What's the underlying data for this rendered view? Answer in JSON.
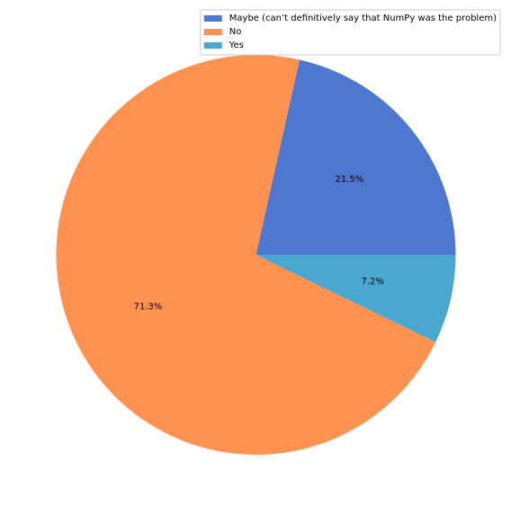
{
  "chart_data": {
    "type": "pie",
    "categories": [
      "Maybe (can’t definitively say that NumPy was the problem)",
      "No",
      "Yes"
    ],
    "values": [
      21.5,
      71.3,
      7.2
    ],
    "labels": [
      "21.5%",
      "71.3%",
      "7.2%"
    ],
    "colors": [
      "#4e78d0",
      "#ff9151",
      "#4aa8d0"
    ],
    "start_angle": 0,
    "direction": "counterclockwise",
    "legend_position": "top-right"
  }
}
